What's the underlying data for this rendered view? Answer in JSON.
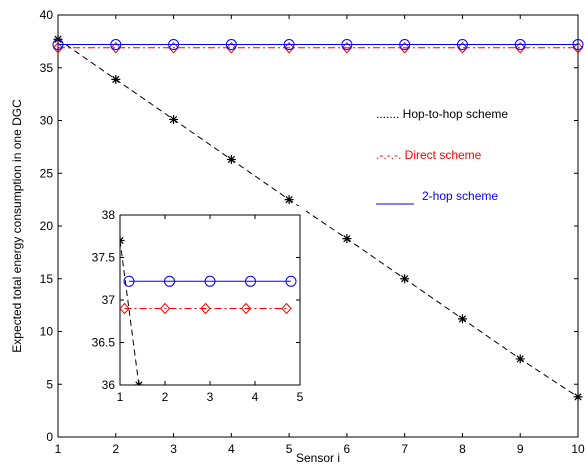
{
  "chart_data": [
    {
      "type": "line",
      "title": "",
      "xlabel": "Sensor i",
      "ylabel": "Expected total energy consumption in one DGC",
      "xlim": [
        1,
        10
      ],
      "ylim": [
        0,
        40
      ],
      "xticks": [
        "1",
        "2",
        "3",
        "4",
        "5",
        "6",
        "7",
        "8",
        "9",
        "10"
      ],
      "yticks": [
        "0",
        "5",
        "10",
        "15",
        "20",
        "25",
        "30",
        "35",
        "40"
      ],
      "grid": false,
      "legend_position": "right",
      "series": [
        {
          "name": "Hop-to-hop scheme",
          "legend_text": "....... Hop-to-hop scheme",
          "color": "#000000",
          "marker": "asterisk",
          "x": [
            1,
            2,
            3,
            4,
            5,
            6,
            7,
            8,
            9,
            10
          ],
          "y": [
            37.7,
            33.9,
            30.1,
            26.3,
            22.5,
            18.8,
            15.0,
            11.2,
            7.4,
            3.8
          ]
        },
        {
          "name": "Direct scheme",
          "legend_text": ".-.-.-. Direct scheme",
          "color": "#ff0000",
          "marker": "diamond",
          "x": [
            1,
            2,
            3,
            4,
            5,
            6,
            7,
            8,
            9,
            10
          ],
          "y": [
            36.9,
            36.9,
            36.9,
            36.9,
            36.9,
            36.9,
            36.9,
            36.9,
            36.9,
            36.9
          ]
        },
        {
          "name": "2-hop scheme",
          "legend_text": "2-hop scheme",
          "color": "#0000ff",
          "marker": "circle",
          "x": [
            1,
            2,
            3,
            4,
            5,
            6,
            7,
            8,
            9,
            10
          ],
          "y": [
            37.2,
            37.2,
            37.2,
            37.2,
            37.2,
            37.2,
            37.2,
            37.2,
            37.2,
            37.2
          ]
        }
      ]
    },
    {
      "type": "line",
      "title": "",
      "xlabel": "",
      "ylabel": "",
      "xlim": [
        1,
        5
      ],
      "ylim": [
        36,
        38
      ],
      "xticks": [
        "1",
        "2",
        "3",
        "4",
        "5"
      ],
      "yticks": [
        "36",
        "36.5",
        "37",
        "37.5",
        "38"
      ],
      "grid": false,
      "series": [
        {
          "color": "#000000",
          "marker": "asterisk",
          "x": [
            1,
            1.42
          ],
          "y": [
            37.7,
            36.0
          ]
        },
        {
          "color": "#ff0000",
          "marker": "diamond",
          "x": [
            1.1,
            2.0,
            2.9,
            3.8,
            4.7
          ],
          "y": [
            36.9,
            36.9,
            36.9,
            36.9,
            36.9
          ]
        },
        {
          "color": "#0000ff",
          "marker": "circle",
          "x": [
            1.2,
            2.1,
            3.0,
            3.9,
            4.8
          ],
          "y": [
            37.22,
            37.22,
            37.22,
            37.22,
            37.22
          ]
        }
      ]
    }
  ]
}
